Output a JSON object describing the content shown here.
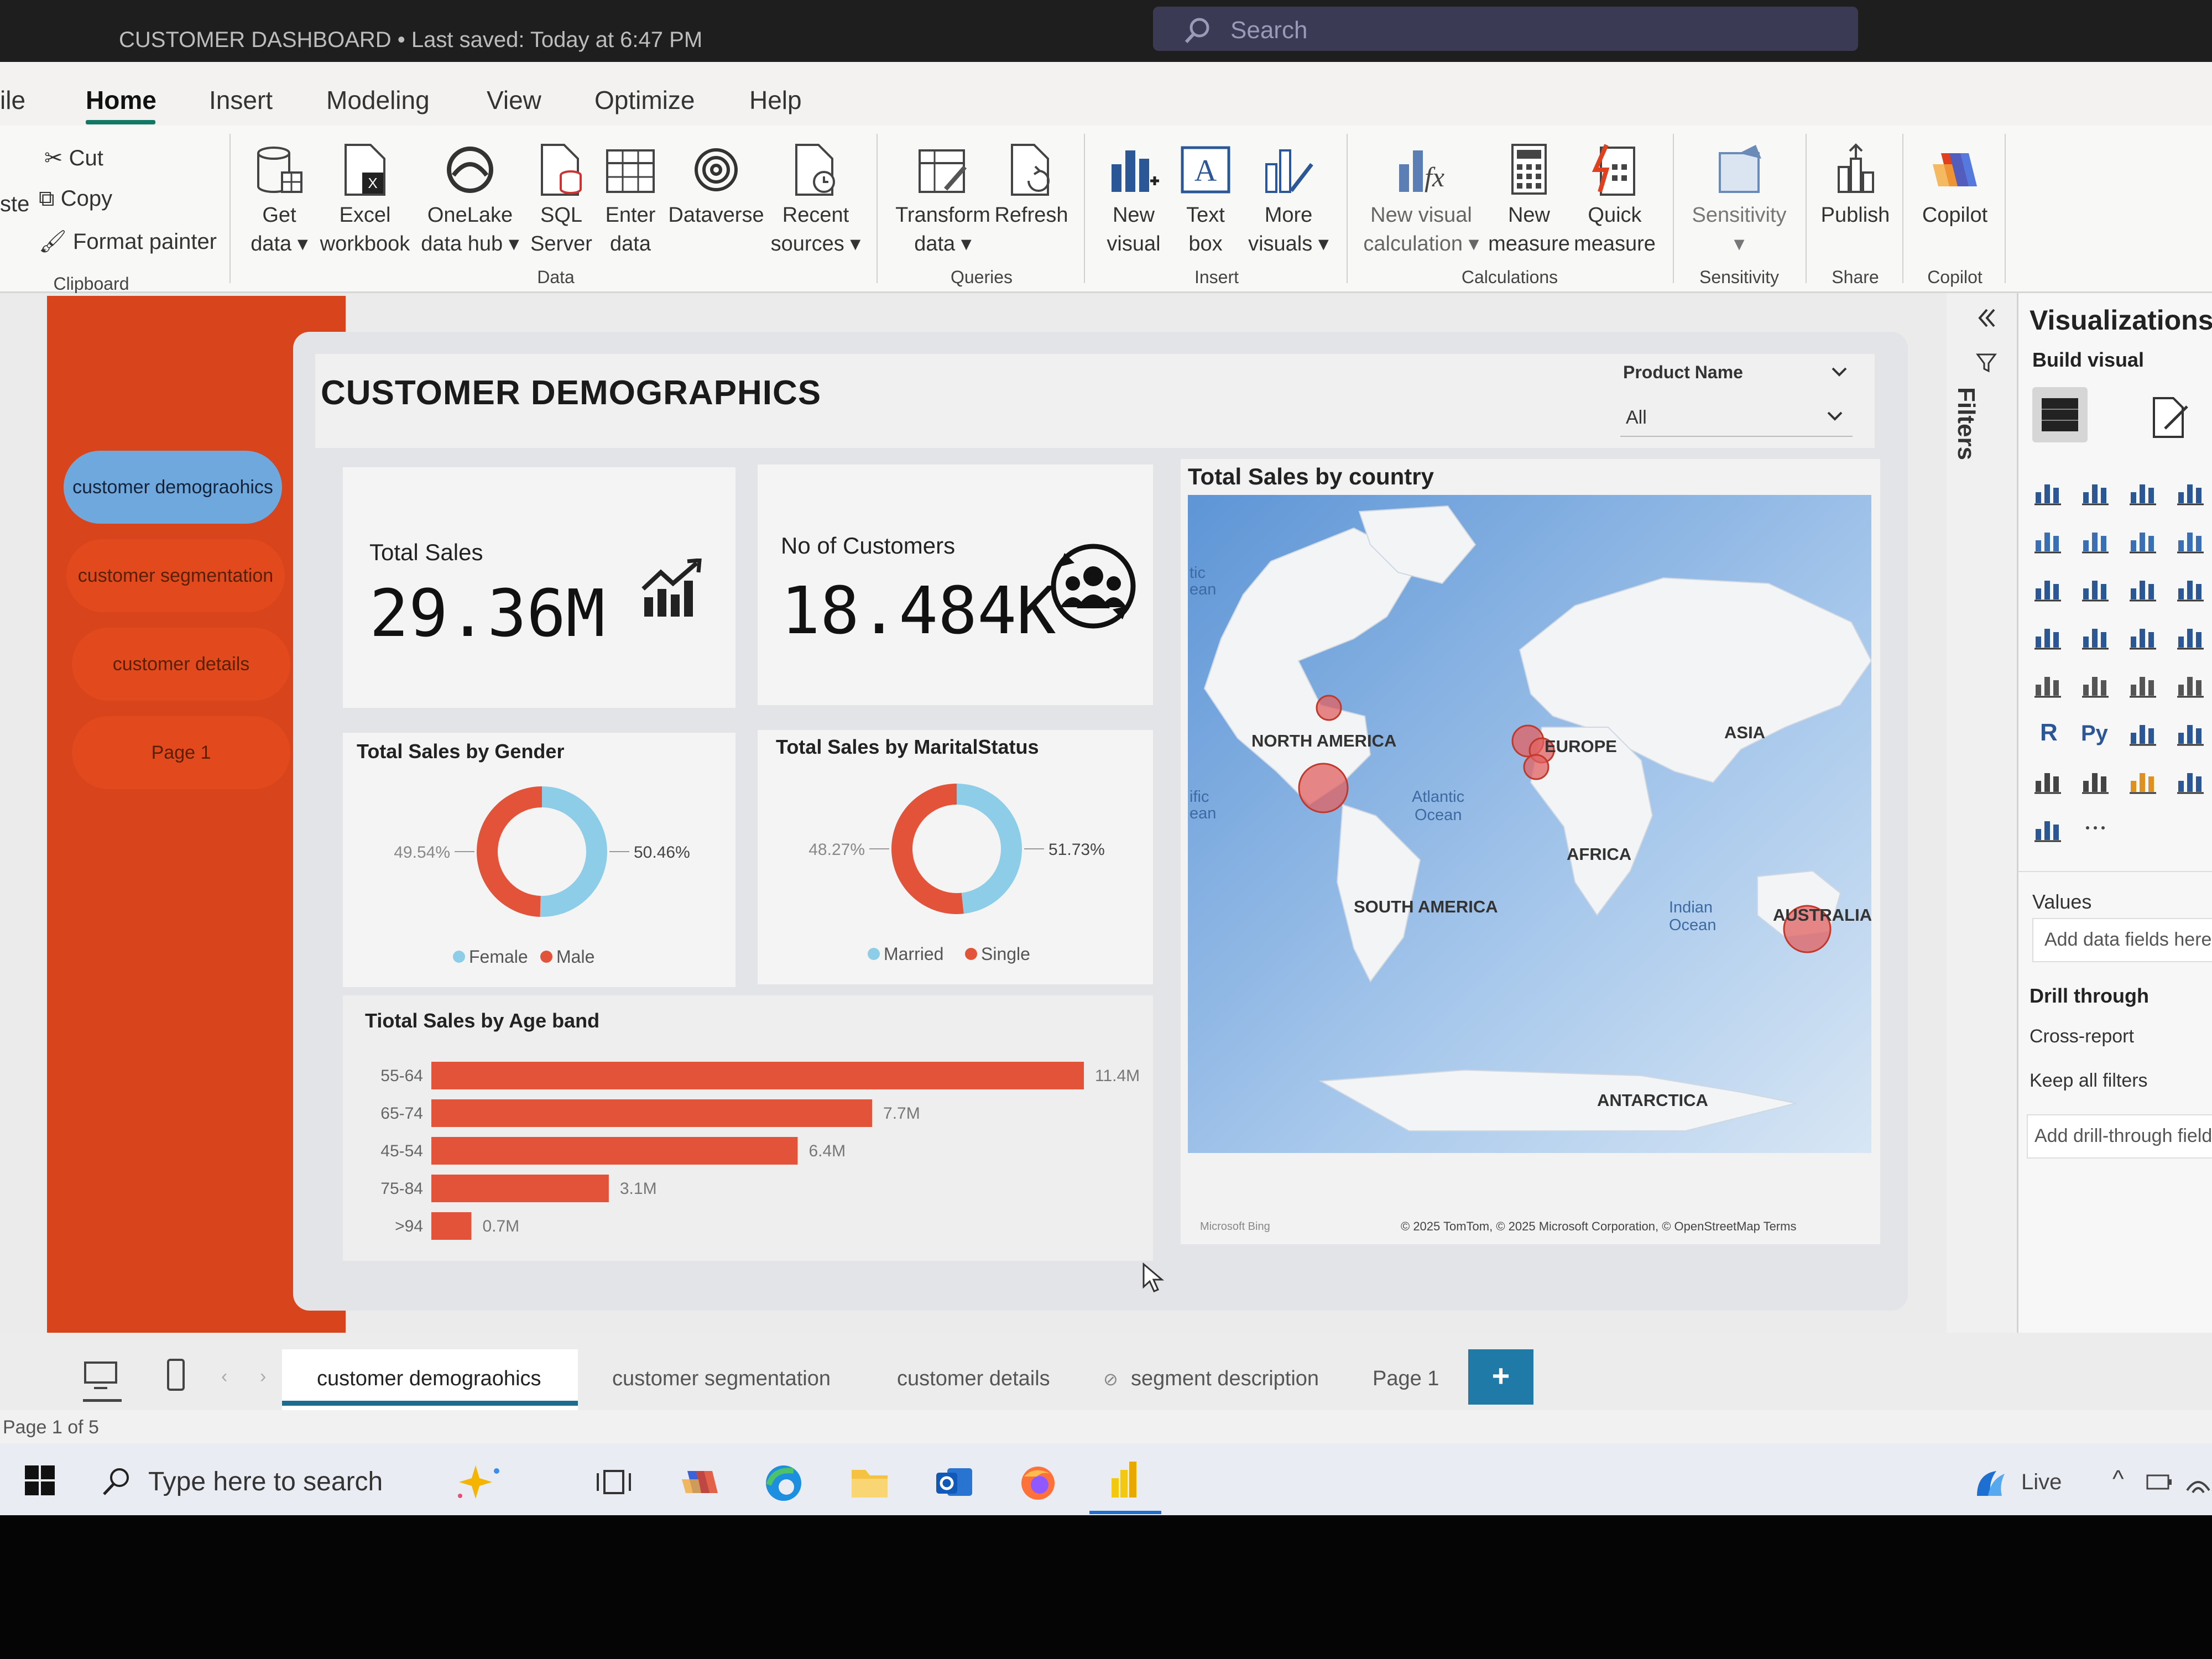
{
  "titlebar": {
    "title": "CUSTOMER DASHBOARD • Last saved: Today at 6:47 PM",
    "search_placeholder": "Search"
  },
  "menu": {
    "tabs": [
      "ile",
      "Home",
      "Insert",
      "Modeling",
      "View",
      "Optimize",
      "Help"
    ],
    "active": "Home"
  },
  "ribbon": {
    "clipboard": {
      "cut": "Cut",
      "copy": "Copy",
      "format_painter": "Format painter",
      "paste_partial": "ste",
      "group": "Clipboard"
    },
    "data": {
      "get_data": [
        "Get",
        "data ▾"
      ],
      "excel": [
        "Excel",
        "workbook"
      ],
      "onelake": [
        "OneLake",
        "data hub ▾"
      ],
      "sql": [
        "SQL",
        "Server"
      ],
      "enter": [
        "Enter",
        "data"
      ],
      "dataverse": [
        "Dataverse"
      ],
      "recent": [
        "Recent",
        "sources ▾"
      ],
      "group": "Data"
    },
    "queries": {
      "transform": [
        "Transform",
        "data ▾"
      ],
      "refresh": [
        "Refresh"
      ],
      "group": "Queries"
    },
    "insert": {
      "new_visual": [
        "New",
        "visual"
      ],
      "text_box": [
        "Text",
        "box"
      ],
      "more_visuals": [
        "More",
        "visuals ▾"
      ],
      "group": "Insert"
    },
    "calculations": {
      "new_visual_calc": [
        "New visual",
        "calculation ▾"
      ],
      "new_measure": [
        "New",
        "measure"
      ],
      "quick_measure": [
        "Quick",
        "measure"
      ],
      "group": "Calculations"
    },
    "sensitivity": {
      "label": [
        "Sensitivity",
        "▾"
      ],
      "group": "Sensitivity"
    },
    "share": {
      "publish": [
        "Publish"
      ],
      "group": "Share"
    },
    "copilot": {
      "label": [
        "Copilot"
      ],
      "group": "Copilot"
    }
  },
  "nav": {
    "items": [
      {
        "label": "customer demograohics",
        "active": true
      },
      {
        "label": "customer segmentation",
        "active": false
      },
      {
        "label": "customer details",
        "active": false
      },
      {
        "label": "Page 1",
        "active": false
      }
    ]
  },
  "report": {
    "title": "CUSTOMER DEMOGRAPHICS",
    "slicer": {
      "label": "Product Name",
      "value": "All"
    },
    "kpis": {
      "total_sales": {
        "label": "Total Sales",
        "value": "29.36M"
      },
      "customers": {
        "label": "No of Customers",
        "value": "18.484K"
      }
    }
  },
  "chart_data": [
    {
      "type": "pie",
      "title": "Total Sales by Gender",
      "categories": [
        "Female",
        "Male"
      ],
      "values": [
        50.46,
        49.54
      ],
      "data_labels": [
        "50.46%",
        "49.54%"
      ],
      "colors": [
        "#8ecde8",
        "#e2533a"
      ],
      "legend": "bottom"
    },
    {
      "type": "pie",
      "title": "Total Sales by MaritalStatus",
      "categories": [
        "Married",
        "Single"
      ],
      "values": [
        48.27,
        51.73
      ],
      "data_labels": [
        "48.27%",
        "51.73%"
      ],
      "colors": [
        "#8ecde8",
        "#e2533a"
      ],
      "legend": "bottom"
    },
    {
      "type": "bar",
      "title": "Tiotal Sales by Age band",
      "categories": [
        "55-64",
        "65-74",
        "45-54",
        "75-84",
        ">94"
      ],
      "values": [
        11.4,
        7.7,
        6.4,
        3.1,
        0.7
      ],
      "data_labels": [
        "11.4M",
        "7.7M",
        "6.4M",
        "3.1M",
        "0.7M"
      ],
      "color": "#e2533a"
    }
  ],
  "map": {
    "title": "Total Sales by country",
    "labels": [
      "NORTH AMERICA",
      "EUROPE",
      "ASIA",
      "AFRICA",
      "SOUTH AMERICA",
      "AUSTRALIA",
      "ANTARCTICA"
    ],
    "ocean_labels": [
      "Atlantic",
      "Ocean",
      "Indian",
      "Ocean",
      "tic",
      "ean",
      "ific",
      "ean"
    ],
    "credit": "© 2025 TomTom, © 2025 Microsoft Corporation, © OpenStreetMap  Terms",
    "brand": "Microsoft Bing"
  },
  "visualizations_pane": {
    "title": "Visualizations",
    "build_visual": "Build visual",
    "filters": "Filters",
    "values_label": "Values",
    "add_fields": "Add data fields here",
    "drill_through": "Drill through",
    "cross_report": "Cross-report",
    "keep_filters": "Keep all filters",
    "add_drill": "Add drill-through fields"
  },
  "page_tabs": {
    "items": [
      "customer demograohics",
      "customer segmentation",
      "customer details",
      "segment description",
      "Page 1"
    ],
    "add": "+"
  },
  "status": {
    "page_indicator": "Page 1 of 5"
  },
  "taskbar": {
    "search_text": "Type here to search",
    "live": "Live"
  }
}
